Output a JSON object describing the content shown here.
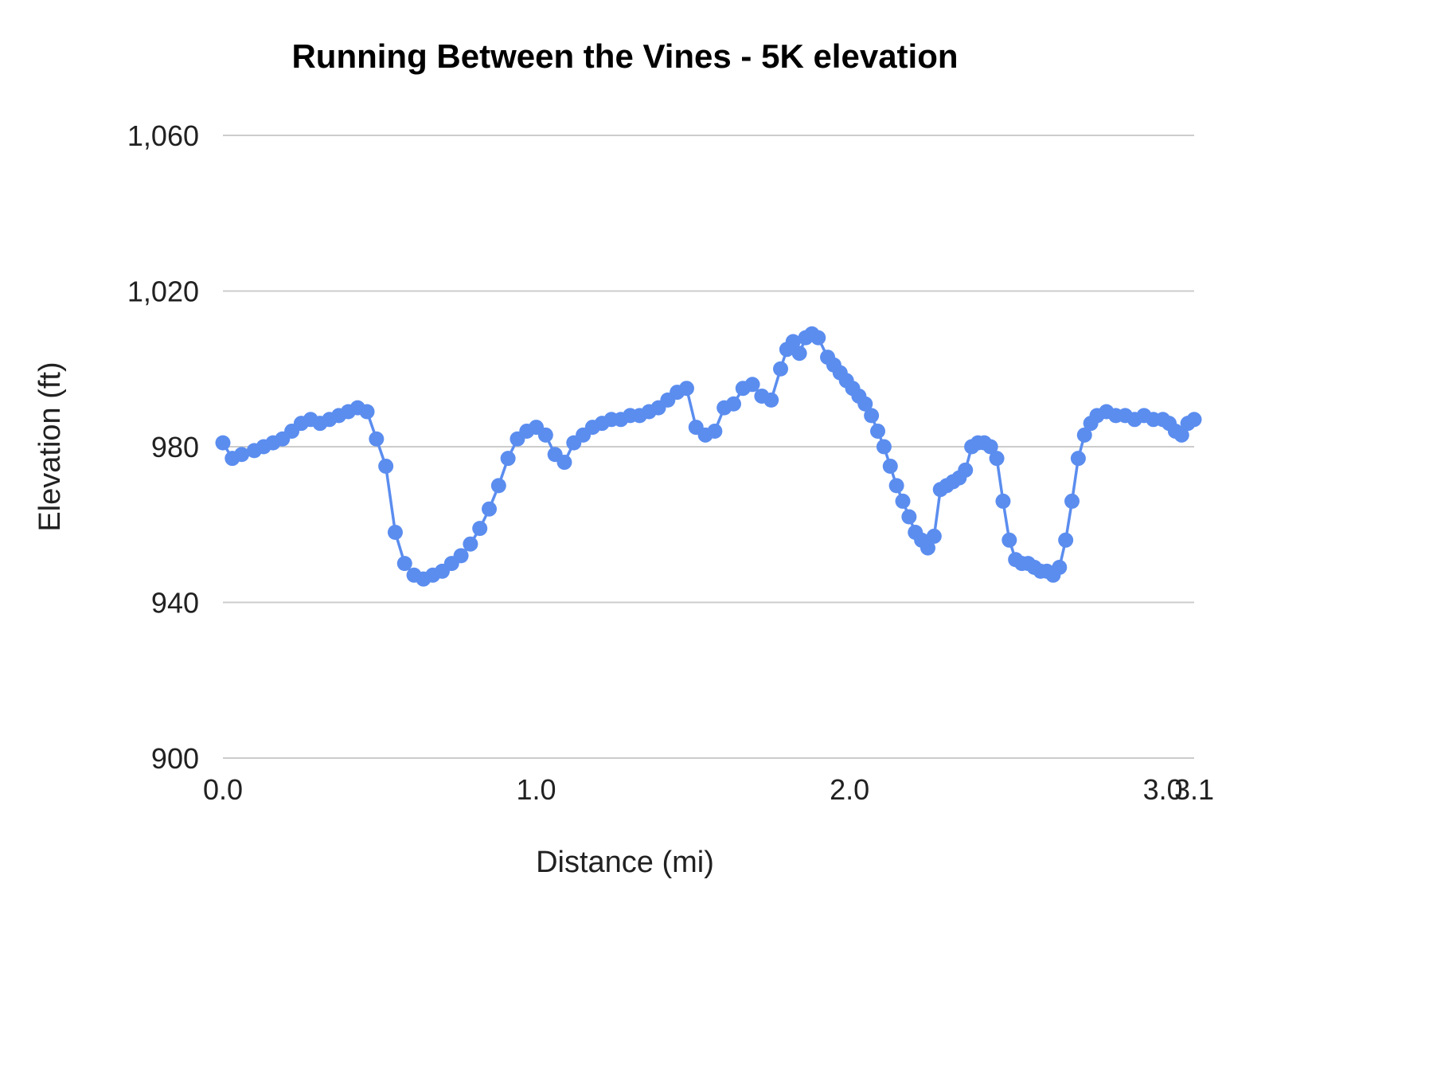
{
  "chart_data": {
    "type": "line",
    "title": "Running Between the Vines - 5K elevation",
    "xlabel": "Distance (mi)",
    "ylabel": "Elevation (ft)",
    "xlim": [
      0,
      3.1
    ],
    "ylim": [
      900,
      1060
    ],
    "grid": "horizontal-only",
    "legend": "none",
    "line_color": "#5b8def",
    "point_color": "#5b8def",
    "grid_color": "#cccccc",
    "text_color": "#212121",
    "title_color": "#000000",
    "y_ticks": [
      {
        "value": 900,
        "label": "900"
      },
      {
        "value": 940,
        "label": "940"
      },
      {
        "value": 980,
        "label": "980"
      },
      {
        "value": 1020,
        "label": "1,020"
      },
      {
        "value": 1060,
        "label": "1,060"
      }
    ],
    "x_ticks": [
      {
        "value": 0,
        "label": "0.0"
      },
      {
        "value": 1,
        "label": "1.0"
      },
      {
        "value": 2,
        "label": "2.0"
      },
      {
        "value": 3,
        "label": "3.0"
      },
      {
        "value": 3.1,
        "label": "3.1"
      }
    ],
    "series": [
      {
        "name": "elevation",
        "x": [
          0.0,
          0.03,
          0.06,
          0.1,
          0.13,
          0.16,
          0.19,
          0.22,
          0.25,
          0.28,
          0.31,
          0.34,
          0.37,
          0.4,
          0.43,
          0.46,
          0.49,
          0.52,
          0.55,
          0.58,
          0.61,
          0.64,
          0.67,
          0.7,
          0.73,
          0.76,
          0.79,
          0.82,
          0.85,
          0.88,
          0.91,
          0.94,
          0.97,
          1.0,
          1.03,
          1.06,
          1.09,
          1.12,
          1.15,
          1.18,
          1.21,
          1.24,
          1.27,
          1.3,
          1.33,
          1.36,
          1.39,
          1.42,
          1.45,
          1.48,
          1.51,
          1.54,
          1.57,
          1.6,
          1.63,
          1.66,
          1.69,
          1.72,
          1.75,
          1.78,
          1.8,
          1.82,
          1.84,
          1.86,
          1.88,
          1.9,
          1.93,
          1.95,
          1.97,
          1.99,
          2.01,
          2.03,
          2.05,
          2.07,
          2.09,
          2.11,
          2.13,
          2.15,
          2.17,
          2.19,
          2.21,
          2.23,
          2.25,
          2.27,
          2.29,
          2.31,
          2.33,
          2.35,
          2.37,
          2.39,
          2.41,
          2.43,
          2.45,
          2.47,
          2.49,
          2.51,
          2.53,
          2.55,
          2.57,
          2.59,
          2.61,
          2.63,
          2.65,
          2.67,
          2.69,
          2.71,
          2.73,
          2.75,
          2.77,
          2.79,
          2.82,
          2.85,
          2.88,
          2.91,
          2.94,
          2.97,
          3.0,
          3.02,
          3.04,
          3.06,
          3.08,
          3.1
        ],
        "y": [
          981,
          977,
          978,
          979,
          980,
          981,
          982,
          984,
          986,
          987,
          986,
          987,
          988,
          989,
          990,
          989,
          982,
          975,
          958,
          950,
          947,
          946,
          947,
          948,
          950,
          952,
          955,
          959,
          964,
          970,
          977,
          982,
          984,
          985,
          983,
          978,
          976,
          981,
          983,
          985,
          986,
          987,
          987,
          988,
          988,
          989,
          990,
          992,
          994,
          995,
          985,
          983,
          984,
          990,
          991,
          995,
          996,
          993,
          992,
          1000,
          1005,
          1007,
          1004,
          1008,
          1009,
          1008,
          1003,
          1001,
          999,
          997,
          995,
          993,
          991,
          988,
          984,
          980,
          975,
          970,
          966,
          962,
          958,
          956,
          954,
          957,
          969,
          970,
          971,
          972,
          974,
          980,
          981,
          981,
          980,
          977,
          966,
          956,
          951,
          950,
          950,
          949,
          948,
          948,
          947,
          949,
          956,
          966,
          977,
          983,
          986,
          988,
          989,
          988,
          988,
          987,
          988,
          987,
          987,
          986,
          984,
          983,
          986,
          987
        ]
      }
    ]
  }
}
